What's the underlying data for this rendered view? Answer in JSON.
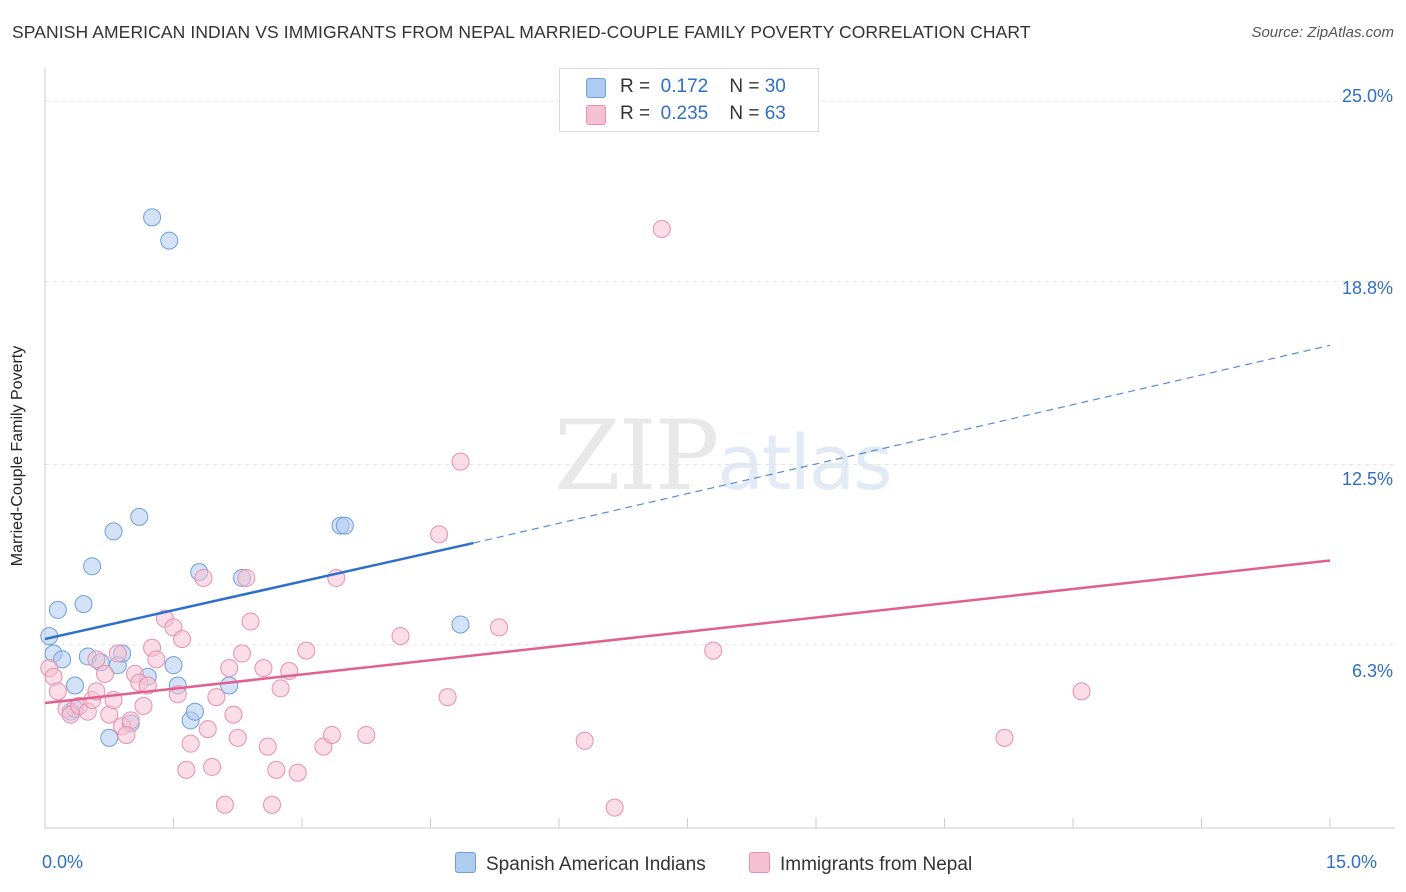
{
  "title": "SPANISH AMERICAN INDIAN VS IMMIGRANTS FROM NEPAL MARRIED-COUPLE FAMILY POVERTY CORRELATION CHART",
  "source": "Source: ZipAtlas.com",
  "watermark": {
    "zip": "ZIP",
    "atlas": "atlas"
  },
  "legend": {
    "rows": [
      {
        "r_label": "R =",
        "r_value": "0.172",
        "n_label": "N =",
        "n_value": "30"
      },
      {
        "r_label": "R =",
        "r_value": "0.235",
        "n_label": "N =",
        "n_value": "63"
      }
    ]
  },
  "bottom_legend": [
    "Spanish American Indians",
    "Immigrants from Nepal"
  ],
  "colors": {
    "blue_fill": "#aecbf0",
    "blue_stroke": "#6f9fd8",
    "blue_line": "#2e6fcc",
    "pink_fill": "#f6c1d2",
    "pink_stroke": "#e88fb0",
    "pink_line": "#e0608f",
    "accent_text": "#2f6fc4"
  },
  "chart_data": {
    "type": "scatter",
    "title": "SPANISH AMERICAN INDIAN VS IMMIGRANTS FROM NEPAL MARRIED-COUPLE FAMILY POVERTY CORRELATION CHART",
    "xlabel": "",
    "ylabel": "Married-Couple Family Poverty",
    "xlim": [
      0,
      15
    ],
    "ylim": [
      0,
      26
    ],
    "x_tick_labels": [
      "0.0%",
      "15.0%"
    ],
    "y_ticks": [
      6.3,
      12.5,
      18.8,
      25.0
    ],
    "y_tick_labels": [
      "6.3%",
      "12.5%",
      "18.8%",
      "25.0%"
    ],
    "series": [
      {
        "name": "Spanish American Indians",
        "r": 0.172,
        "n": 30,
        "points": [
          [
            0.05,
            6.6
          ],
          [
            0.1,
            6.0
          ],
          [
            0.15,
            7.5
          ],
          [
            0.2,
            5.8
          ],
          [
            0.35,
            4.9
          ],
          [
            0.45,
            7.7
          ],
          [
            0.5,
            5.9
          ],
          [
            0.55,
            9.0
          ],
          [
            0.65,
            5.7
          ],
          [
            0.75,
            3.1
          ],
          [
            0.8,
            10.2
          ],
          [
            0.85,
            5.6
          ],
          [
            0.9,
            6.0
          ],
          [
            1.0,
            3.6
          ],
          [
            1.1,
            10.7
          ],
          [
            1.2,
            5.2
          ],
          [
            1.25,
            21.0
          ],
          [
            1.45,
            20.2
          ],
          [
            1.5,
            5.6
          ],
          [
            1.55,
            4.9
          ],
          [
            1.7,
            3.7
          ],
          [
            1.75,
            4.0
          ],
          [
            1.8,
            8.8
          ],
          [
            2.15,
            4.9
          ],
          [
            2.3,
            8.6
          ],
          [
            3.45,
            10.4
          ],
          [
            3.5,
            10.4
          ],
          [
            4.85,
            7.0
          ],
          [
            0.3,
            4.0
          ],
          [
            0.35,
            4.1
          ]
        ]
      },
      {
        "name": "Immigrants from Nepal",
        "r": 0.235,
        "n": 63,
        "points": [
          [
            0.05,
            5.5
          ],
          [
            0.1,
            5.2
          ],
          [
            0.15,
            4.7
          ],
          [
            0.25,
            4.1
          ],
          [
            0.3,
            3.9
          ],
          [
            0.4,
            4.2
          ],
          [
            0.5,
            4.0
          ],
          [
            0.55,
            4.4
          ],
          [
            0.6,
            4.7
          ],
          [
            0.7,
            5.3
          ],
          [
            0.75,
            3.9
          ],
          [
            0.8,
            4.4
          ],
          [
            0.85,
            6.0
          ],
          [
            0.9,
            3.5
          ],
          [
            1.0,
            3.7
          ],
          [
            1.05,
            5.3
          ],
          [
            1.1,
            5.0
          ],
          [
            1.15,
            4.2
          ],
          [
            1.2,
            4.9
          ],
          [
            1.25,
            6.2
          ],
          [
            1.3,
            5.8
          ],
          [
            1.4,
            7.2
          ],
          [
            1.5,
            6.9
          ],
          [
            1.55,
            4.6
          ],
          [
            1.6,
            6.5
          ],
          [
            1.65,
            2.0
          ],
          [
            1.7,
            2.9
          ],
          [
            1.85,
            8.6
          ],
          [
            1.9,
            3.4
          ],
          [
            1.95,
            2.1
          ],
          [
            2.0,
            4.5
          ],
          [
            2.1,
            0.8
          ],
          [
            2.15,
            5.5
          ],
          [
            2.2,
            3.9
          ],
          [
            2.25,
            3.1
          ],
          [
            2.3,
            6.0
          ],
          [
            2.35,
            8.6
          ],
          [
            2.4,
            7.1
          ],
          [
            2.55,
            5.5
          ],
          [
            2.6,
            2.8
          ],
          [
            2.65,
            0.8
          ],
          [
            2.7,
            2.0
          ],
          [
            2.75,
            4.8
          ],
          [
            2.85,
            5.4
          ],
          [
            2.95,
            1.9
          ],
          [
            3.05,
            6.1
          ],
          [
            3.25,
            2.8
          ],
          [
            3.35,
            3.2
          ],
          [
            3.4,
            8.6
          ],
          [
            3.75,
            3.2
          ],
          [
            4.15,
            6.6
          ],
          [
            4.7,
            4.5
          ],
          [
            4.6,
            10.1
          ],
          [
            4.85,
            12.6
          ],
          [
            5.3,
            6.9
          ],
          [
            6.3,
            3.0
          ],
          [
            6.65,
            0.7
          ],
          [
            7.2,
            20.6
          ],
          [
            7.8,
            6.1
          ],
          [
            11.2,
            3.1
          ],
          [
            12.1,
            4.7
          ],
          [
            0.6,
            5.8
          ],
          [
            0.95,
            3.2
          ]
        ]
      }
    ],
    "trend_lines": [
      {
        "series": "Spanish American Indians",
        "solid": [
          [
            0,
            6.5
          ],
          [
            5.0,
            9.8
          ]
        ],
        "dashed": [
          [
            5.0,
            9.8
          ],
          [
            15.0,
            16.6
          ]
        ]
      },
      {
        "series": "Immigrants from Nepal",
        "solid": [
          [
            0,
            4.3
          ],
          [
            15.0,
            9.2
          ]
        ]
      }
    ],
    "grid": true,
    "legend_position": "top-center"
  }
}
